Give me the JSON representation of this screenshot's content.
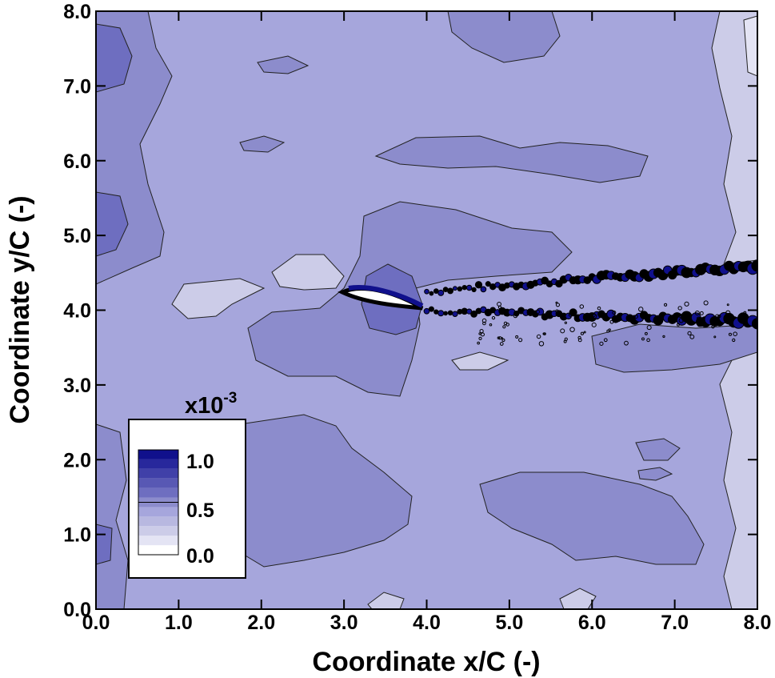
{
  "chart_data": {
    "type": "heatmap",
    "title": "",
    "xlabel": "Coordinate x/C (-)",
    "ylabel": "Coordinate y/C (-)",
    "xlim": [
      0.0,
      8.0
    ],
    "ylim": [
      0.0,
      8.0
    ],
    "x_ticks": [
      "0.0",
      "1.0",
      "2.0",
      "3.0",
      "4.0",
      "5.0",
      "6.0",
      "7.0",
      "8.0"
    ],
    "y_ticks": [
      "0.0",
      "1.0",
      "2.0",
      "3.0",
      "4.0",
      "5.0",
      "6.0",
      "7.0",
      "8.0"
    ],
    "grid": false,
    "legend": {
      "placement": "bottom-left",
      "multiplier": "x10",
      "exponent": "-3",
      "labels": [
        "1.0",
        "0.5",
        "0.0"
      ],
      "levels": [
        0.0,
        0.1,
        0.2,
        0.3,
        0.4,
        0.5,
        0.6,
        0.7,
        0.8,
        0.9,
        1.0
      ],
      "colors": [
        "#ffffff",
        "#e4e4f4",
        "#cccce8",
        "#b8b8e0",
        "#a6a6dc",
        "#8c8ccc",
        "#6e6ec0",
        "#5858b4",
        "#4040a8",
        "#28289c",
        "#10108c"
      ]
    },
    "background_level_color": "#a6a6dc",
    "airfoil": {
      "leading_edge": [
        3.0,
        4.25
      ],
      "trailing_edge": [
        3.95,
        4.0
      ]
    },
    "wake_regions": [
      {
        "x": [
          4.0,
          8.0
        ],
        "y_upper": [
          4.25,
          4.6
        ],
        "y_lower": [
          4.0,
          3.85
        ]
      }
    ]
  }
}
